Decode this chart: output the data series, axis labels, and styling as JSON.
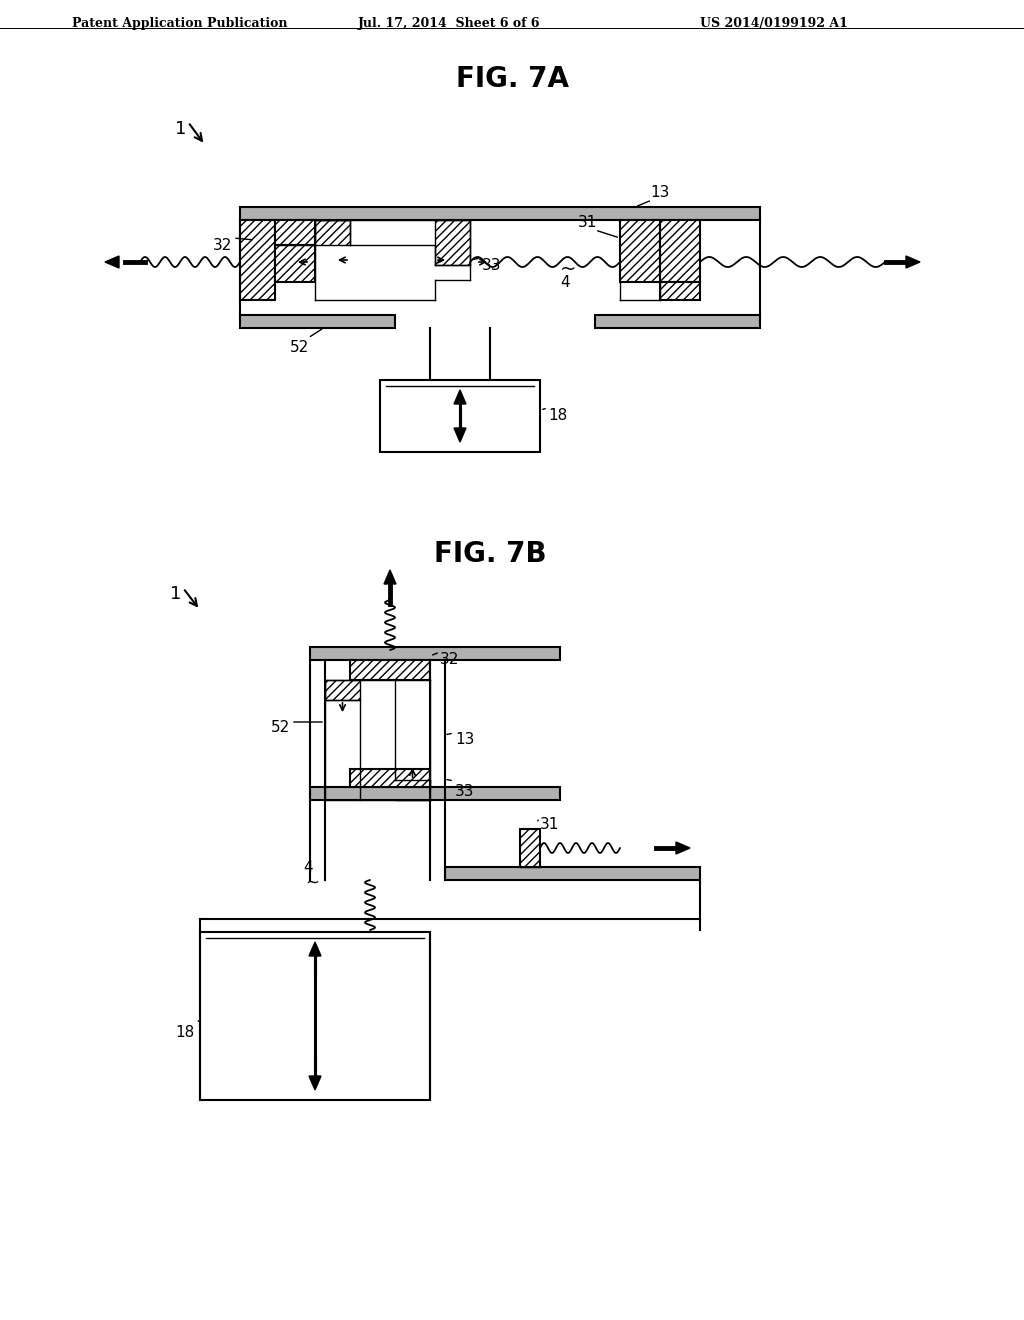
{
  "header_left": "Patent Application Publication",
  "header_center": "Jul. 17, 2014  Sheet 6 of 6",
  "header_right": "US 2014/0199192 A1",
  "fig7a_title": "FIG. 7A",
  "fig7b_title": "FIG. 7B",
  "bg_color": "#ffffff",
  "line_color": "#000000"
}
